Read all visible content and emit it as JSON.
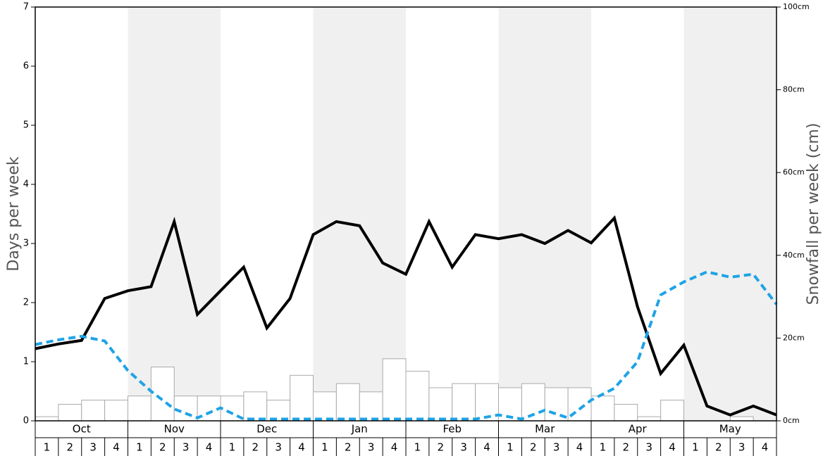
{
  "chart_data": {
    "type": "combo",
    "ylabel": "Days per week",
    "y2label": "Snowfall per week (cm)",
    "months": [
      "Oct",
      "Nov",
      "Dec",
      "Jan",
      "Feb",
      "Mar",
      "Apr",
      "May"
    ],
    "weeks": [
      "1",
      "2",
      "3",
      "4"
    ],
    "shaded_months": [
      1,
      3,
      5,
      7
    ],
    "shade_color": "#f0f0f0",
    "ylim": [
      0,
      7
    ],
    "yticks": [
      0,
      1,
      2,
      3,
      4,
      5,
      6,
      7
    ],
    "y2lim": [
      0,
      100
    ],
    "y2ticks": [
      {
        "value": 0,
        "label": "0cm"
      },
      {
        "value": 20,
        "label": "20cm"
      },
      {
        "value": 40,
        "label": "40cm"
      },
      {
        "value": 60,
        "label": "60cm"
      },
      {
        "value": 80,
        "label": "80cm"
      },
      {
        "value": 100,
        "label": "100cm"
      }
    ],
    "series": [
      {
        "type": "bar",
        "axis": "y2",
        "color": "#ffffff",
        "stroke": "#aaaaaa",
        "values": [
          1,
          4,
          5,
          5,
          6,
          13,
          6,
          6,
          6,
          7,
          5,
          11,
          7,
          9,
          7,
          15,
          12,
          8,
          9,
          9,
          8,
          9,
          8,
          8,
          6,
          4,
          1,
          5,
          0,
          0,
          1,
          0
        ]
      },
      {
        "type": "line",
        "color": "#000000",
        "dashed": false,
        "values": [
          1.22,
          1.3,
          1.36,
          2.07,
          2.2,
          2.27,
          3.37,
          1.8,
          2.2,
          2.6,
          1.57,
          2.07,
          3.15,
          3.37,
          3.3,
          2.67,
          2.48,
          3.37,
          2.6,
          3.15,
          3.08,
          3.15,
          3.0,
          3.22,
          3.01,
          3.43,
          1.93,
          0.8,
          1.28,
          0.25,
          0.1,
          0.25,
          0.1
        ]
      },
      {
        "type": "line",
        "color": "#1fa3e6",
        "dashed": true,
        "values": [
          1.29,
          1.37,
          1.43,
          1.35,
          0.85,
          0.5,
          0.2,
          0.05,
          0.22,
          0.03,
          0.03,
          0.03,
          0.03,
          0.03,
          0.03,
          0.03,
          0.03,
          0.03,
          0.03,
          0.03,
          0.1,
          0.03,
          0.18,
          0.05,
          0.35,
          0.55,
          1.0,
          2.13,
          2.35,
          2.52,
          2.43,
          2.48,
          1.97
        ]
      }
    ]
  }
}
